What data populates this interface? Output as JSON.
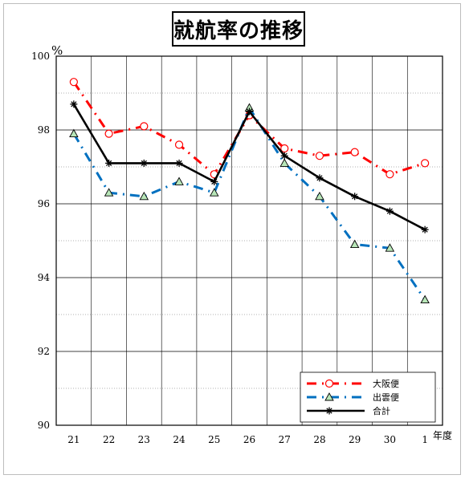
{
  "chart_data": {
    "type": "line",
    "title": "就航率の推移",
    "ylabel": "%",
    "xlabel": "年度",
    "categories": [
      "21",
      "22",
      "23",
      "24",
      "25",
      "26",
      "27",
      "28",
      "29",
      "30",
      "1"
    ],
    "ylim": [
      90,
      100
    ],
    "yticks": [
      90,
      92,
      94,
      96,
      98,
      100
    ],
    "grid": true,
    "legend_position": "bottom-right",
    "series": [
      {
        "name": "大阪便",
        "values": [
          99.3,
          97.9,
          98.1,
          97.6,
          96.8,
          98.4,
          97.5,
          97.3,
          97.4,
          96.8,
          97.1
        ],
        "color": "#ff0000",
        "marker": "circle",
        "style": "dash-dot"
      },
      {
        "name": "出雲便",
        "values": [
          97.9,
          96.3,
          96.2,
          96.6,
          96.3,
          98.6,
          97.1,
          96.2,
          94.9,
          94.8,
          93.4
        ],
        "color": "#0070c0",
        "marker": "triangle",
        "style": "dash-dot"
      },
      {
        "name": "合計",
        "values": [
          98.7,
          97.1,
          97.1,
          97.1,
          96.6,
          98.5,
          97.3,
          96.7,
          96.2,
          95.8,
          95.3
        ],
        "color": "#000000",
        "marker": "star",
        "style": "solid"
      }
    ]
  }
}
